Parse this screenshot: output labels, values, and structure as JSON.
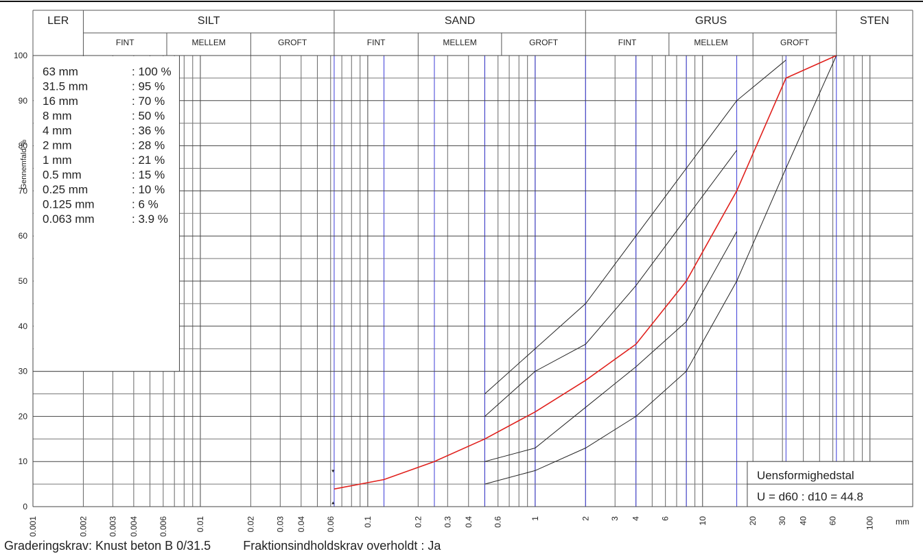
{
  "chart_data": {
    "type": "line",
    "xscale": "log",
    "x_unit": "mm",
    "xlim": [
      0.001,
      180
    ],
    "ylim": [
      0,
      100
    ],
    "ylabel": "Gennemfald %",
    "y_ticks": [
      0,
      10,
      20,
      30,
      40,
      50,
      60,
      70,
      80,
      90,
      100
    ],
    "x_tick_labels": [
      {
        "v": 0.001,
        "t": "0.001"
      },
      {
        "v": 0.002,
        "t": "0.002"
      },
      {
        "v": 0.003,
        "t": "0.003"
      },
      {
        "v": 0.004,
        "t": "0.004"
      },
      {
        "v": 0.006,
        "t": "0.006"
      },
      {
        "v": 0.01,
        "t": "0.01"
      },
      {
        "v": 0.02,
        "t": "0.02"
      },
      {
        "v": 0.03,
        "t": "0.03"
      },
      {
        "v": 0.04,
        "t": "0.04"
      },
      {
        "v": 0.06,
        "t": "0.06"
      },
      {
        "v": 0.1,
        "t": "0.1"
      },
      {
        "v": 0.2,
        "t": "0.2"
      },
      {
        "v": 0.3,
        "t": "0.3"
      },
      {
        "v": 0.4,
        "t": "0.4"
      },
      {
        "v": 0.6,
        "t": "0.6"
      },
      {
        "v": 1,
        "t": "1"
      },
      {
        "v": 2,
        "t": "2"
      },
      {
        "v": 3,
        "t": "3"
      },
      {
        "v": 4,
        "t": "4"
      },
      {
        "v": 6,
        "t": "6"
      },
      {
        "v": 10,
        "t": "10"
      },
      {
        "v": 20,
        "t": "20"
      },
      {
        "v": 30,
        "t": "30"
      },
      {
        "v": 40,
        "t": "40"
      },
      {
        "v": 60,
        "t": "60"
      },
      {
        "v": 100,
        "t": "100"
      }
    ],
    "x_unit_label": "mm",
    "fractions": [
      {
        "name": "LER",
        "from": 0.001,
        "to": 0.002,
        "subs": []
      },
      {
        "name": "SILT",
        "from": 0.002,
        "to": 0.063,
        "subs": [
          {
            "name": "FINT",
            "from": 0.002,
            "to": 0.0063
          },
          {
            "name": "MELLEM",
            "from": 0.0063,
            "to": 0.02
          },
          {
            "name": "GROFT",
            "from": 0.02,
            "to": 0.063
          }
        ]
      },
      {
        "name": "SAND",
        "from": 0.063,
        "to": 2,
        "subs": [
          {
            "name": "FINT",
            "from": 0.063,
            "to": 0.2
          },
          {
            "name": "MELLEM",
            "from": 0.2,
            "to": 0.63
          },
          {
            "name": "GROFT",
            "from": 0.63,
            "to": 2
          }
        ]
      },
      {
        "name": "GRUS",
        "from": 2,
        "to": 63,
        "subs": [
          {
            "name": "FINT",
            "from": 2,
            "to": 6.3
          },
          {
            "name": "MELLEM",
            "from": 6.3,
            "to": 20
          },
          {
            "name": "GROFT",
            "from": 20,
            "to": 63
          }
        ]
      },
      {
        "name": "STEN",
        "from": 63,
        "to": 180,
        "subs": []
      }
    ],
    "series": [
      {
        "role": "sample",
        "color": "#e0201c",
        "x": [
          0.063,
          0.125,
          0.25,
          0.5,
          1,
          2,
          4,
          8,
          16,
          31.5,
          63
        ],
        "y": [
          3.9,
          6,
          10,
          15,
          21,
          28,
          36,
          50,
          70,
          95,
          100
        ]
      },
      {
        "role": "limit",
        "color": "#222222",
        "x": [
          0.5,
          1,
          2,
          4,
          8,
          16,
          31.5
        ],
        "y": [
          25,
          35,
          45,
          60,
          75,
          90,
          99
        ]
      },
      {
        "role": "limit",
        "color": "#222222",
        "x": [
          0.5,
          1,
          2,
          4,
          8,
          16
        ],
        "y": [
          20,
          30,
          36,
          49,
          64,
          79
        ]
      },
      {
        "role": "limit",
        "color": "#222222",
        "x": [
          0.5,
          1,
          2,
          4,
          8,
          16
        ],
        "y": [
          10,
          13,
          22,
          31,
          41,
          61
        ]
      },
      {
        "role": "limit",
        "color": "#222222",
        "x": [
          0.5,
          1,
          2,
          4,
          8,
          16,
          31.5,
          63
        ],
        "y": [
          5,
          8,
          13,
          20,
          30,
          50,
          75,
          100
        ]
      }
    ],
    "table": [
      {
        "size": "63 mm",
        "pass": ": 100 %"
      },
      {
        "size": "31.5 mm",
        "pass": ": 95 %"
      },
      {
        "size": "16 mm",
        "pass": ": 70 %"
      },
      {
        "size": "8 mm",
        "pass": ": 50 %"
      },
      {
        "size": "4 mm",
        "pass": ": 36 %"
      },
      {
        "size": "2 mm",
        "pass": ": 28 %"
      },
      {
        "size": "1 mm",
        "pass": ": 21 %"
      },
      {
        "size": "0.5 mm",
        "pass": ": 15 %"
      },
      {
        "size": "0.25 mm",
        "pass": ": 10 %"
      },
      {
        "size": "0.125 mm",
        "pass": ": 6 %"
      },
      {
        "size": "0.063 mm",
        "pass": ": 3.9 %"
      }
    ],
    "uniformity": {
      "title": "Uensformighedstal",
      "value": "U = d60 : d10 = 44.8"
    }
  },
  "footer": {
    "requirement": "Graderingskrav: Knust beton B 0/31.5",
    "fraction_requirement": "Fraktionsindholdskrav overholdt : Ja"
  }
}
